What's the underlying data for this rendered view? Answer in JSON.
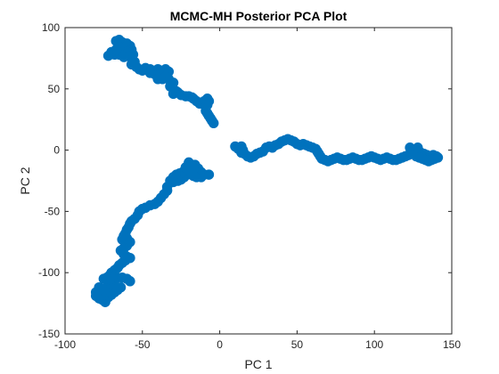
{
  "chart_data": {
    "type": "scatter",
    "title": "MCMC-MH Posterior PCA Plot",
    "xlabel": "PC 1",
    "ylabel": "PC 2",
    "xlim": [
      -100,
      150
    ],
    "ylim": [
      -150,
      100
    ],
    "xticks": [
      -100,
      -50,
      0,
      50,
      100,
      150
    ],
    "yticks": [
      -150,
      -100,
      -50,
      0,
      50,
      100
    ],
    "grid": false,
    "marker_color": "#0072BD",
    "series": [
      {
        "name": "",
        "points": [
          [
            -67,
            89
          ],
          [
            -65,
            90
          ],
          [
            -63,
            88
          ],
          [
            -62,
            85
          ],
          [
            -60,
            87
          ],
          [
            -58,
            85
          ],
          [
            -57,
            82
          ],
          [
            -65,
            84
          ],
          [
            -63,
            80
          ],
          [
            -60,
            80
          ],
          [
            -56,
            78
          ],
          [
            -57,
            75
          ],
          [
            -60,
            77
          ],
          [
            -62,
            76
          ],
          [
            -65,
            78
          ],
          [
            -68,
            78
          ],
          [
            -72,
            77
          ],
          [
            -70,
            80
          ],
          [
            -67,
            82
          ],
          [
            -55,
            72
          ],
          [
            -57,
            70
          ],
          [
            -54,
            68
          ],
          [
            -52,
            66
          ],
          [
            -50,
            65
          ],
          [
            -48,
            67
          ],
          [
            -45,
            66
          ],
          [
            -42,
            65
          ],
          [
            -40,
            66
          ],
          [
            -38,
            65
          ],
          [
            -35,
            66
          ],
          [
            -33,
            64
          ],
          [
            -35,
            62
          ],
          [
            -38,
            62
          ],
          [
            -42,
            62
          ],
          [
            -45,
            63
          ],
          [
            -40,
            58
          ],
          [
            -37,
            58
          ],
          [
            -35,
            60
          ],
          [
            -33,
            58
          ],
          [
            -30,
            55
          ],
          [
            -32,
            52
          ],
          [
            -30,
            50
          ],
          [
            -28,
            48
          ],
          [
            -30,
            46
          ],
          [
            -27,
            47
          ],
          [
            -25,
            45
          ],
          [
            -22,
            44
          ],
          [
            -20,
            44
          ],
          [
            -18,
            43
          ],
          [
            -17,
            42
          ],
          [
            -15,
            40
          ],
          [
            -13,
            38
          ],
          [
            -10,
            40
          ],
          [
            -8,
            42
          ],
          [
            -7,
            40
          ],
          [
            -8,
            37
          ],
          [
            -9,
            35
          ],
          [
            -9,
            32
          ],
          [
            -8,
            30
          ],
          [
            -7,
            28
          ],
          [
            -6,
            26
          ],
          [
            -5,
            24
          ],
          [
            -4,
            22
          ],
          [
            -21,
            -20
          ],
          [
            -23,
            -22
          ],
          [
            -25,
            -24
          ],
          [
            -27,
            -25
          ],
          [
            -30,
            -26
          ],
          [
            -32,
            -25
          ],
          [
            -30,
            -22
          ],
          [
            -28,
            -20
          ],
          [
            -26,
            -19
          ],
          [
            -24,
            -18
          ],
          [
            -22,
            -17
          ],
          [
            -20,
            -15
          ],
          [
            -18,
            -13
          ],
          [
            -16,
            -12
          ],
          [
            -14,
            -15
          ],
          [
            -12,
            -18
          ],
          [
            -10,
            -20
          ],
          [
            -7,
            -20
          ],
          [
            -16,
            -18
          ],
          [
            -18,
            -20
          ],
          [
            -15,
            -22
          ],
          [
            -12,
            -22
          ],
          [
            -20,
            -10
          ],
          [
            -22,
            -14
          ],
          [
            -19,
            -17
          ],
          [
            -17,
            -21
          ],
          [
            -34,
            -30
          ],
          [
            -34,
            -33
          ],
          [
            -36,
            -36
          ],
          [
            -38,
            -39
          ],
          [
            -40,
            -42
          ],
          [
            -42,
            -44
          ],
          [
            -45,
            -45
          ],
          [
            -48,
            -47
          ],
          [
            -50,
            -48
          ],
          [
            -52,
            -50
          ],
          [
            -53,
            -53
          ],
          [
            -55,
            -56
          ],
          [
            -57,
            -58
          ],
          [
            -58,
            -60
          ],
          [
            -59,
            -63
          ],
          [
            -60,
            -65
          ],
          [
            -61,
            -68
          ],
          [
            -62,
            -70
          ],
          [
            -63,
            -73
          ],
          [
            -60,
            -72
          ],
          [
            -58,
            -75
          ],
          [
            -60,
            -78
          ],
          [
            -62,
            -80
          ],
          [
            -64,
            -82
          ],
          [
            -62,
            -85
          ],
          [
            -60,
            -87
          ],
          [
            -58,
            -88
          ],
          [
            -61,
            -90
          ],
          [
            -63,
            -92
          ],
          [
            -65,
            -94
          ],
          [
            -66,
            -96
          ],
          [
            -68,
            -98
          ],
          [
            -70,
            -100
          ],
          [
            -71,
            -102
          ],
          [
            -73,
            -104
          ],
          [
            -75,
            -105
          ],
          [
            -72,
            -108
          ],
          [
            -70,
            -110
          ],
          [
            -73,
            -112
          ],
          [
            -75,
            -114
          ],
          [
            -77,
            -115
          ],
          [
            -79,
            -117
          ],
          [
            -80,
            -119
          ],
          [
            -78,
            -121
          ],
          [
            -76,
            -122
          ],
          [
            -74,
            -124
          ],
          [
            -72,
            -120
          ],
          [
            -70,
            -118
          ],
          [
            -68,
            -116
          ],
          [
            -66,
            -114
          ],
          [
            -64,
            -112
          ],
          [
            -68,
            -110
          ],
          [
            -70,
            -106
          ],
          [
            -66,
            -104
          ],
          [
            -63,
            -104
          ],
          [
            -60,
            -105
          ],
          [
            -58,
            -107
          ],
          [
            -76,
            -118
          ],
          [
            -74,
            -115
          ],
          [
            -78,
            -112
          ],
          [
            -80,
            -116
          ],
          [
            10,
            3
          ],
          [
            12,
            1
          ],
          [
            14,
            3
          ],
          [
            15,
            0
          ],
          [
            14,
            -2
          ],
          [
            16,
            -3
          ],
          [
            18,
            -5
          ],
          [
            20,
            -6
          ],
          [
            22,
            -5
          ],
          [
            24,
            -3
          ],
          [
            26,
            -2
          ],
          [
            28,
            -1
          ],
          [
            30,
            2
          ],
          [
            32,
            3
          ],
          [
            34,
            2
          ],
          [
            36,
            4
          ],
          [
            38,
            5
          ],
          [
            40,
            7
          ],
          [
            42,
            8
          ],
          [
            44,
            9
          ],
          [
            46,
            8
          ],
          [
            48,
            7
          ],
          [
            50,
            5
          ],
          [
            52,
            4
          ],
          [
            54,
            5
          ],
          [
            56,
            4
          ],
          [
            58,
            3
          ],
          [
            60,
            2
          ],
          [
            62,
            1
          ],
          [
            63,
            -1
          ],
          [
            64,
            -3
          ],
          [
            65,
            -5
          ],
          [
            66,
            -7
          ],
          [
            68,
            -8
          ],
          [
            70,
            -9
          ],
          [
            72,
            -8
          ],
          [
            74,
            -7
          ],
          [
            76,
            -6
          ],
          [
            78,
            -7
          ],
          [
            80,
            -8
          ],
          [
            82,
            -8
          ],
          [
            84,
            -7
          ],
          [
            86,
            -6
          ],
          [
            88,
            -7
          ],
          [
            90,
            -8
          ],
          [
            92,
            -8
          ],
          [
            94,
            -7
          ],
          [
            96,
            -6
          ],
          [
            98,
            -5
          ],
          [
            100,
            -6
          ],
          [
            102,
            -7
          ],
          [
            104,
            -8
          ],
          [
            106,
            -7
          ],
          [
            108,
            -6
          ],
          [
            110,
            -7
          ],
          [
            112,
            -8
          ],
          [
            114,
            -8
          ],
          [
            116,
            -7
          ],
          [
            118,
            -6
          ],
          [
            120,
            -5
          ],
          [
            122,
            -4
          ],
          [
            124,
            -3
          ],
          [
            126,
            -2
          ],
          [
            128,
            -1
          ],
          [
            130,
            -2
          ],
          [
            132,
            -3
          ],
          [
            134,
            -4
          ],
          [
            136,
            -5
          ],
          [
            138,
            -4
          ],
          [
            140,
            -5
          ],
          [
            141,
            -6
          ],
          [
            139,
            -7
          ],
          [
            137,
            -8
          ],
          [
            135,
            -9
          ],
          [
            133,
            -8
          ],
          [
            131,
            -7
          ],
          [
            129,
            -6
          ],
          [
            127,
            -5
          ],
          [
            125,
            0
          ],
          [
            123,
            2
          ],
          [
            128,
            2
          ]
        ]
      }
    ]
  }
}
